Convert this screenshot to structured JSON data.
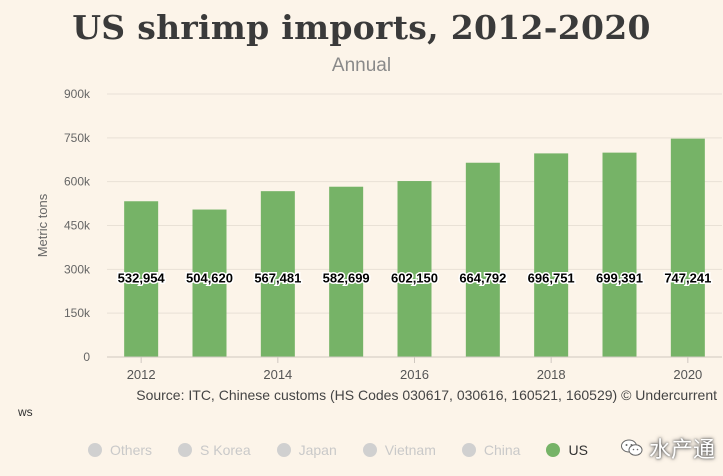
{
  "chart_data": {
    "type": "bar",
    "title": "US shrimp imports, 2012-2020",
    "subtitle": "Annual",
    "ylabel": "Metric tons",
    "categories": [
      "2012",
      "2013",
      "2014",
      "2015",
      "2016",
      "2017",
      "2018",
      "2019",
      "2020"
    ],
    "x_tick_labels": [
      "2012",
      "2014",
      "2016",
      "2018",
      "2020"
    ],
    "series": [
      {
        "name": "US",
        "values": [
          532954,
          504620,
          567481,
          582699,
          602150,
          664792,
          696751,
          699391,
          747241
        ],
        "labels": [
          "532,954",
          "504,620",
          "567,481",
          "582,699",
          "602,150",
          "664,792",
          "696,751",
          "699,391",
          "747,241"
        ]
      }
    ],
    "ylim": [
      0,
      900000
    ],
    "y_ticks": [
      0,
      150000,
      300000,
      450000,
      600000,
      750000,
      900000
    ],
    "y_tick_labels": [
      "0",
      "150k",
      "300k",
      "450k",
      "600k",
      "750k",
      "900k"
    ],
    "grid": true,
    "bar_color": "#76b367"
  },
  "source": "Source: ITC, Chinese customs (HS Codes 030617, 030616, 160521, 160529)  © Undercurrent",
  "ws_text": "ws",
  "legend": [
    {
      "label": "Others",
      "color": "#d0d0d0",
      "active": false
    },
    {
      "label": "S Korea",
      "color": "#d0d0d0",
      "active": false
    },
    {
      "label": "Japan",
      "color": "#d0d0d0",
      "active": false
    },
    {
      "label": "Vietnam",
      "color": "#d0d0d0",
      "active": false
    },
    {
      "label": "China",
      "color": "#d0d0d0",
      "active": false
    },
    {
      "label": "US",
      "color": "#76b367",
      "active": true
    }
  ],
  "watermark": "水产通"
}
